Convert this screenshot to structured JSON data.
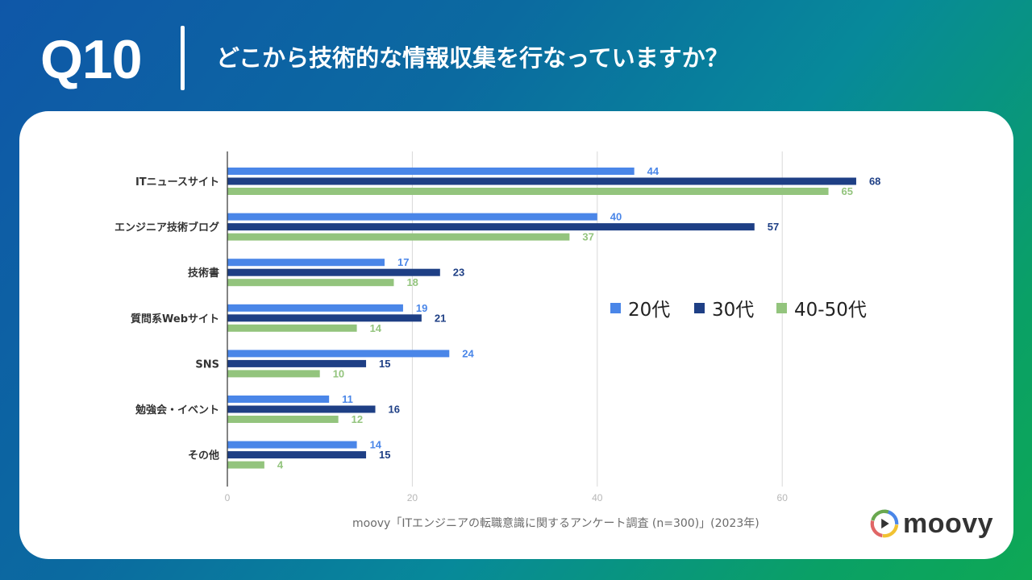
{
  "header": {
    "question_number": "Q10",
    "question_text": "どこから技術的な情報収集を行なっていますか？"
  },
  "footer": {
    "source": "moovy「ITエンジニアの転職意識に関するアンケート調査 (n=300)」(2023年)",
    "brand": "moovy"
  },
  "colors": {
    "s20": "#4a86e8",
    "s30": "#1e3f85",
    "s40": "#93c47d",
    "grid": "#d9d9d9",
    "axis": "#333333",
    "tick": "#b7b7b7"
  },
  "chart_data": {
    "type": "bar",
    "orientation": "horizontal",
    "title": "",
    "xlabel": "",
    "ylabel": "",
    "xlim": [
      0,
      70
    ],
    "xticks": [
      0,
      20,
      40,
      60
    ],
    "grid": true,
    "legend_position": "right",
    "categories": [
      "ITニュースサイト",
      "エンジニア技術ブログ",
      "技術書",
      "質問系Webサイト",
      "SNS",
      "勉強会・イベント",
      "その他"
    ],
    "series": [
      {
        "name": "20代",
        "color": "#4a86e8",
        "values": [
          44,
          40,
          17,
          19,
          24,
          11,
          14
        ]
      },
      {
        "name": "30代",
        "color": "#1e3f85",
        "values": [
          68,
          57,
          23,
          21,
          15,
          16,
          15
        ]
      },
      {
        "name": "40-50代",
        "color": "#93c47d",
        "values": [
          65,
          37,
          18,
          14,
          10,
          12,
          4
        ]
      }
    ]
  }
}
